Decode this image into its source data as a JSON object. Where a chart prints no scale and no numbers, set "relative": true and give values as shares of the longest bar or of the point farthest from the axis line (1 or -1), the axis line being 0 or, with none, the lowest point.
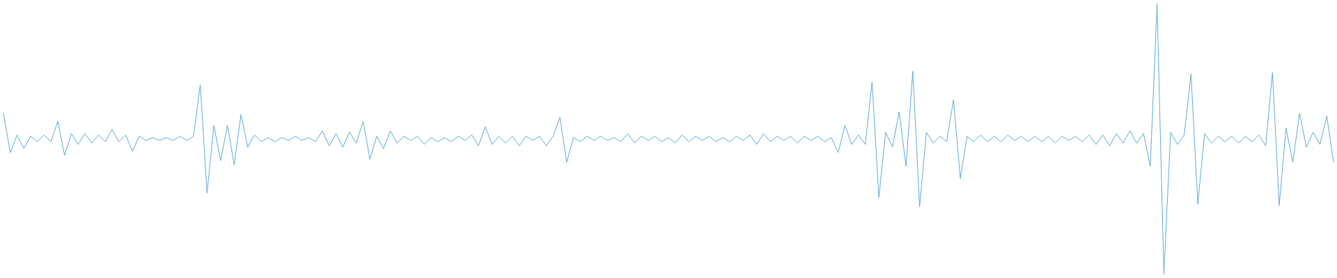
{
  "chart_data": {
    "type": "line",
    "relative": true,
    "categories": [
      null,
      null,
      null,
      null,
      null,
      null,
      null,
      null,
      null,
      null,
      null,
      null,
      null,
      null,
      null,
      null,
      null,
      null,
      null,
      null,
      null,
      null,
      null,
      null,
      null,
      null,
      null,
      null,
      null,
      null,
      null,
      null,
      null,
      null,
      null,
      null,
      null,
      null,
      null,
      null,
      null,
      null,
      null,
      null,
      null,
      null,
      null,
      null,
      null,
      null,
      null,
      null,
      null,
      null,
      null,
      null,
      null,
      null,
      null,
      null,
      null,
      null,
      null,
      null,
      null,
      null,
      null,
      null,
      null,
      null,
      null,
      null,
      null,
      null,
      null,
      null,
      null,
      null,
      null,
      null,
      null,
      null,
      null,
      null,
      null,
      null,
      null,
      null,
      null,
      null,
      null,
      null,
      null,
      null,
      null,
      null,
      null,
      null,
      null,
      null,
      null,
      null,
      null,
      null,
      null,
      null,
      null,
      null,
      null,
      null,
      null,
      null,
      null,
      null,
      null,
      null,
      null,
      null,
      null,
      null,
      null,
      null,
      null,
      null,
      null,
      null,
      null,
      null,
      null,
      null,
      null,
      null,
      null,
      null,
      null,
      null,
      null,
      null,
      null,
      null,
      null,
      null,
      null,
      null,
      null,
      null,
      null,
      null,
      null,
      null,
      null,
      null,
      null,
      null,
      null,
      null,
      null,
      null,
      null,
      null,
      null,
      null,
      null,
      null,
      null,
      null,
      null,
      null,
      null,
      null,
      null,
      null,
      null,
      null,
      null,
      null,
      null,
      null,
      null,
      null,
      null,
      null,
      null,
      null,
      null,
      null,
      null,
      null,
      null,
      null,
      null,
      null,
      null,
      null,
      null,
      null,
      null
    ],
    "series": [
      {
        "color": "#5aaae0",
        "values": [
          0.595,
          0.45,
          0.515,
          0.465,
          0.51,
          0.49,
          0.515,
          0.49,
          0.565,
          0.44,
          0.52,
          0.48,
          0.52,
          0.485,
          0.515,
          0.49,
          0.535,
          0.49,
          0.515,
          0.455,
          0.51,
          0.495,
          0.505,
          0.495,
          0.505,
          0.495,
          0.51,
          0.495,
          0.51,
          0.7,
          0.3,
          0.55,
          0.42,
          0.55,
          0.405,
          0.59,
          0.47,
          0.515,
          0.49,
          0.505,
          0.49,
          0.505,
          0.495,
          0.51,
          0.495,
          0.505,
          0.49,
          0.53,
          0.475,
          0.52,
          0.47,
          0.525,
          0.485,
          0.565,
          0.425,
          0.51,
          0.465,
          0.53,
          0.485,
          0.51,
          0.495,
          0.51,
          0.48,
          0.505,
          0.49,
          0.505,
          0.49,
          0.51,
          0.495,
          0.515,
          0.475,
          0.545,
          0.48,
          0.51,
          0.485,
          0.51,
          0.475,
          0.51,
          0.495,
          0.51,
          0.475,
          0.51,
          0.58,
          0.415,
          0.505,
          0.49,
          0.51,
          0.495,
          0.51,
          0.495,
          0.505,
          0.49,
          0.52,
          0.485,
          0.51,
          0.495,
          0.51,
          0.49,
          0.505,
          0.485,
          0.515,
          0.49,
          0.51,
          0.495,
          0.51,
          0.49,
          0.505,
          0.49,
          0.51,
          0.495,
          0.515,
          0.48,
          0.52,
          0.49,
          0.51,
          0.495,
          0.51,
          0.485,
          0.51,
          0.495,
          0.51,
          0.49,
          0.505,
          0.45,
          0.55,
          0.48,
          0.515,
          0.48,
          0.71,
          0.285,
          0.525,
          0.47,
          0.6,
          0.4,
          0.75,
          0.25,
          0.525,
          0.485,
          0.51,
          0.49,
          0.645,
          0.355,
          0.51,
          0.49,
          0.515,
          0.49,
          0.51,
          0.49,
          0.515,
          0.495,
          0.51,
          0.49,
          0.51,
          0.49,
          0.51,
          0.485,
          0.51,
          0.495,
          0.51,
          0.49,
          0.515,
          0.48,
          0.515,
          0.475,
          0.52,
          0.485,
          0.53,
          0.485,
          0.52,
          0.4,
          1,
          0,
          0.525,
          0.48,
          0.515,
          0.74,
          0.26,
          0.52,
          0.485,
          0.51,
          0.49,
          0.51,
          0.485,
          0.51,
          0.49,
          0.515,
          0.475,
          0.745,
          0.255,
          0.54,
          0.415,
          0.595,
          0.47,
          0.525,
          0.48,
          0.585,
          0.415
        ]
      }
    ]
  }
}
